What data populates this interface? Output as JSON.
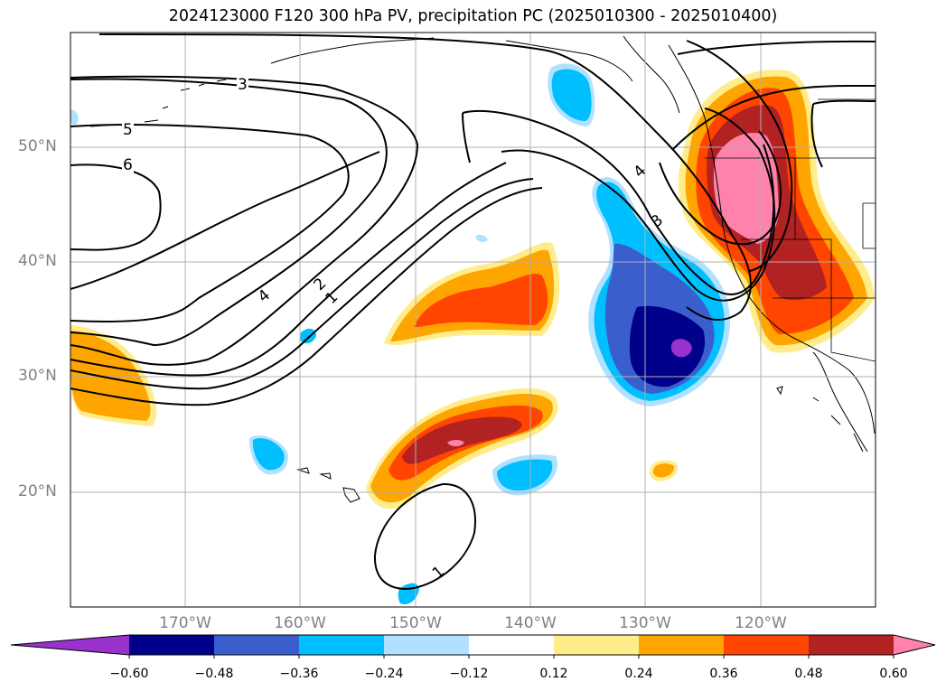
{
  "title": "2024123000 F120 300 hPa PV, precipitation PC (2025010300 - 2025010400)",
  "lat_labels": [
    "50°N",
    "40°N",
    "30°N",
    "20°N"
  ],
  "lon_labels": [
    "170°W",
    "160°W",
    "150°W",
    "140°W",
    "130°W",
    "120°W"
  ],
  "contour_labels": [
    "3",
    "5",
    "6",
    "4",
    "2",
    "1",
    "4",
    "3",
    "1"
  ],
  "colorbar": {
    "ticks": [
      "−0.60",
      "−0.48",
      "−0.36",
      "−0.24",
      "−0.12",
      "0.12",
      "0.24",
      "0.36",
      "0.48",
      "0.60"
    ],
    "colors": [
      "#9932cc",
      "#00008b",
      "#3a5fcd",
      "#00bfff",
      "#b0e2ff",
      "#ffffff",
      "#ffec8b",
      "#ffa500",
      "#ff4500",
      "#b22222",
      "#ff82ab"
    ]
  }
}
